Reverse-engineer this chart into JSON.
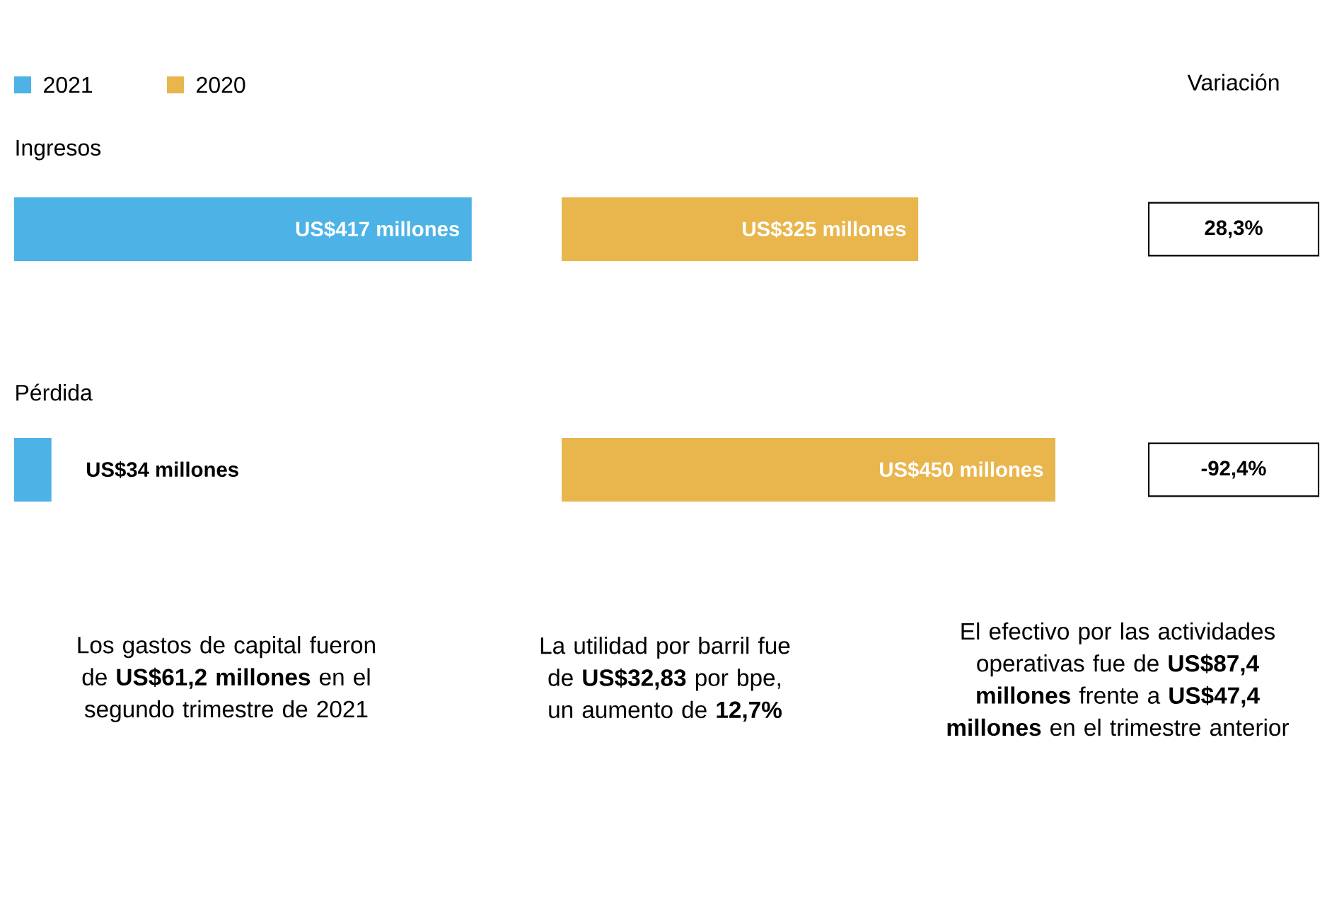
{
  "chart_data": [
    {
      "type": "bar",
      "orientation": "horizontal",
      "categories": [
        "Ingresos",
        "Pérdida"
      ],
      "series": [
        {
          "name": "2021",
          "color": "#4db3e6",
          "values": [
            417,
            34
          ],
          "value_labels": [
            "US$417 millones",
            "US$34 millones"
          ]
        }
      ],
      "legend": "top left",
      "annotations": [
        "Variación",
        "28,3%",
        "-92,4%",
        "Los gastos de capital fueron de **US$61,2 millones** en el segundo trimestre de 2021",
        "La utilidad por barril fue de **US$32,83** por bpe, un aumento de **12,7%**",
        "El efectivo por las actividades operativas fue de **US$87,4 millones** frente a **US$47,4 millones** en el trimestre anterior"
      ]
    },
    {
      "type": "bar",
      "orientation": "horizontal",
      "categories": [
        null,
        null
      ],
      "series": [
        {
          "name": "2020",
          "color": "#e8b64c",
          "values": [
            325,
            450
          ],
          "value_labels": [
            "US$325 millones",
            "US$450 millones"
          ]
        }
      ],
      "legend": "top left"
    }
  ]
}
